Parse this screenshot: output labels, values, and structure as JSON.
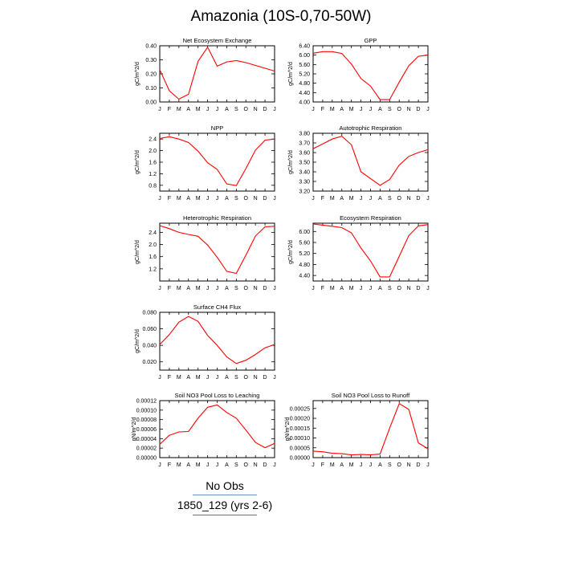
{
  "title": "Amazonia (10S-0,70-50W)",
  "legend": {
    "obs_label": "No Obs",
    "obs_color": "#6a8ec8",
    "model_label": "1850_129 (yrs 2-6)",
    "model_color": "#e2402c"
  },
  "line_color": "#ff0000",
  "chart_data": [
    {
      "type": "line",
      "title": "Net Ecosystem Exchange",
      "ylabel": "gC/m^2/d",
      "categories": [
        "J",
        "F",
        "M",
        "A",
        "M",
        "J",
        "J",
        "A",
        "S",
        "O",
        "N",
        "D",
        "J"
      ],
      "values": [
        0.23,
        0.08,
        0.02,
        0.055,
        0.29,
        0.39,
        0.255,
        0.285,
        0.295,
        0.28,
        0.26,
        0.24,
        0.22
      ],
      "ylim": [
        0,
        0.4
      ],
      "yticks": [
        "0.00",
        "0.10",
        "0.20",
        "0.30",
        "0.40"
      ]
    },
    {
      "type": "line",
      "title": "GPP",
      "ylabel": "gC/m^2/d",
      "categories": [
        "J",
        "F",
        "M",
        "A",
        "M",
        "J",
        "J",
        "A",
        "S",
        "O",
        "N",
        "D",
        "J"
      ],
      "values": [
        6.08,
        6.15,
        6.15,
        6.07,
        5.62,
        5.0,
        4.68,
        4.1,
        4.1,
        4.85,
        5.55,
        5.95,
        6.0
      ],
      "ylim": [
        4.0,
        6.4
      ],
      "yticks": [
        "4.00",
        "4.40",
        "4.80",
        "5.20",
        "5.60",
        "6.00",
        "6.40"
      ]
    },
    {
      "type": "line",
      "title": "NPP",
      "ylabel": "gC/m^2/d",
      "categories": [
        "J",
        "F",
        "M",
        "A",
        "M",
        "J",
        "J",
        "A",
        "S",
        "O",
        "N",
        "D",
        "J"
      ],
      "values": [
        2.42,
        2.48,
        2.4,
        2.28,
        1.98,
        1.58,
        1.35,
        0.85,
        0.79,
        1.38,
        2.02,
        2.36,
        2.4
      ],
      "ylim": [
        0.6,
        2.6
      ],
      "yticks": [
        "0.8",
        "1.2",
        "1.6",
        "2.0",
        "2.4"
      ]
    },
    {
      "type": "line",
      "title": "Autotrophic Respiration",
      "ylabel": "gC/m^2/d",
      "categories": [
        "J",
        "F",
        "M",
        "A",
        "M",
        "J",
        "J",
        "A",
        "S",
        "O",
        "N",
        "D",
        "J"
      ],
      "values": [
        3.64,
        3.69,
        3.74,
        3.77,
        3.68,
        3.4,
        3.33,
        3.26,
        3.32,
        3.47,
        3.56,
        3.6,
        3.63
      ],
      "ylim": [
        3.2,
        3.8
      ],
      "yticks": [
        "3.20",
        "3.30",
        "3.40",
        "3.50",
        "3.60",
        "3.70",
        "3.80"
      ]
    },
    {
      "type": "line",
      "title": "Heterotrophic Respiration",
      "ylabel": "gC/m^2/d",
      "categories": [
        "J",
        "F",
        "M",
        "A",
        "M",
        "J",
        "J",
        "A",
        "S",
        "O",
        "N",
        "D",
        "J"
      ],
      "values": [
        2.62,
        2.52,
        2.4,
        2.33,
        2.27,
        1.98,
        1.58,
        1.12,
        1.05,
        1.65,
        2.28,
        2.58,
        2.6
      ],
      "ylim": [
        0.8,
        2.7
      ],
      "yticks": [
        "1.2",
        "1.6",
        "2.0",
        "2.4"
      ]
    },
    {
      "type": "line",
      "title": "Ecosystem Respiration",
      "ylabel": "gC/m^2/d",
      "categories": [
        "J",
        "F",
        "M",
        "A",
        "M",
        "J",
        "J",
        "A",
        "S",
        "O",
        "N",
        "D",
        "J"
      ],
      "values": [
        6.27,
        6.23,
        6.19,
        6.14,
        5.95,
        5.4,
        4.93,
        4.35,
        4.35,
        5.1,
        5.85,
        6.2,
        6.25
      ],
      "ylim": [
        4.2,
        6.3
      ],
      "yticks": [
        "4.40",
        "4.80",
        "5.20",
        "5.60",
        "6.00"
      ]
    },
    {
      "type": "line",
      "title": "Surface CH4 Flux",
      "ylabel": "gC/m^2/d",
      "categories": [
        "J",
        "F",
        "M",
        "A",
        "M",
        "J",
        "J",
        "A",
        "S",
        "O",
        "N",
        "D",
        "J"
      ],
      "values": [
        0.041,
        0.053,
        0.068,
        0.075,
        0.069,
        0.052,
        0.04,
        0.026,
        0.018,
        0.022,
        0.029,
        0.037,
        0.041
      ],
      "ylim": [
        0.01,
        0.08
      ],
      "yticks": [
        "0.020",
        "0.040",
        "0.060",
        "0.080"
      ]
    },
    {
      "type": "line",
      "title": "Soil NO3 Pool Loss to Leaching",
      "ylabel": "gN/m^2/d",
      "categories": [
        "J",
        "F",
        "M",
        "A",
        "M",
        "J",
        "J",
        "A",
        "S",
        "O",
        "N",
        "D",
        "J"
      ],
      "values": [
        2.8e-05,
        4.7e-05,
        5.4e-05,
        5.5e-05,
        8.3e-05,
        0.000106,
        0.000111,
        9.5e-05,
        8.3e-05,
        5.8e-05,
        3.2e-05,
        2.1e-05,
        3e-05
      ],
      "ylim": [
        0,
        0.00012
      ],
      "yticks": [
        "0.00000",
        "0.00002",
        "0.00004",
        "0.00006",
        "0.00008",
        "0.00010",
        "0.00012"
      ]
    },
    {
      "type": "line",
      "title": "Soil NO3 Pool Loss to Runoff",
      "ylabel": "gN/m^2/d",
      "categories": [
        "J",
        "F",
        "M",
        "A",
        "M",
        "J",
        "J",
        "A",
        "S",
        "O",
        "N",
        "D",
        "J"
      ],
      "values": [
        3.3e-05,
        3e-05,
        2.2e-05,
        2e-05,
        1.4e-05,
        1.6e-05,
        1.4e-05,
        1.8e-05,
        0.00015,
        0.000275,
        0.000245,
        7.5e-05,
        4.5e-05
      ],
      "ylim": [
        0,
        0.00029
      ],
      "yticks": [
        "0.00000",
        "0.00005",
        "0.00010",
        "0.00015",
        "0.00020",
        "0.00025"
      ]
    }
  ]
}
